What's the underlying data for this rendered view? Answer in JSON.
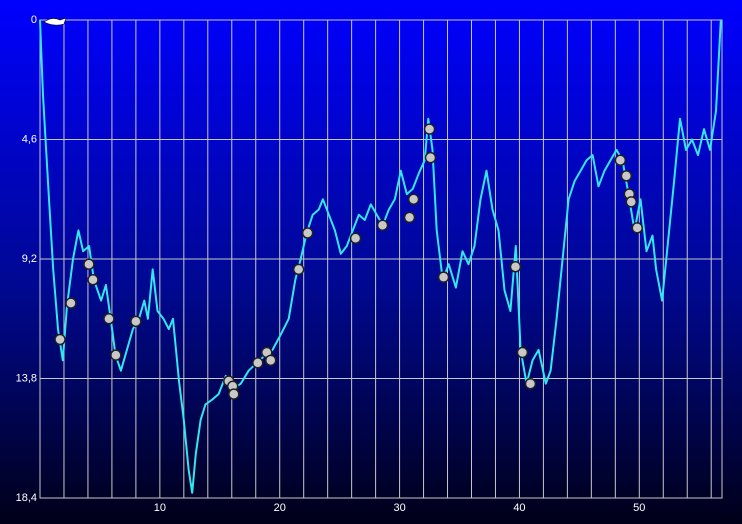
{
  "chart_data": {
    "type": "line",
    "color": "#33e6f0",
    "y_inverted": true,
    "grid": true,
    "xlim": [
      0,
      56.9
    ],
    "xticks": [
      10,
      20,
      30,
      40,
      50
    ],
    "xgrid": [
      2,
      4,
      6,
      8,
      10,
      12,
      14,
      16,
      18,
      20,
      22,
      24,
      26,
      28,
      30,
      32,
      34,
      36,
      38,
      40,
      42,
      44,
      46,
      48,
      50,
      52,
      54,
      56
    ],
    "ylim": [
      0,
      18.4
    ],
    "yticks": [
      0,
      {
        "value": 4.6,
        "label": "4,6"
      },
      {
        "value": 9.2,
        "label": "9,2"
      },
      {
        "value": 13.8,
        "label": "13,8"
      },
      {
        "value": 18.4,
        "label": "18,4"
      }
    ],
    "x": [
      0,
      0.25,
      0.75,
      1.1,
      1.5,
      1.9,
      2.25,
      2.75,
      3.2,
      3.6,
      4.1,
      4.5,
      5.1,
      5.5,
      5.9,
      6.3,
      6.75,
      7.25,
      7.75,
      8.25,
      8.7,
      9,
      9.4,
      9.8,
      10.3,
      10.75,
      11.1,
      11.6,
      12,
      12.4,
      12.7,
      13,
      13.4,
      13.8,
      14.4,
      14.9,
      15.5,
      16.1,
      16.75,
      17.4,
      18.1,
      18.8,
      19.4,
      20.1,
      20.75,
      21.3,
      21.75,
      22.25,
      22.75,
      23.25,
      23.6,
      24.1,
      24.6,
      25.1,
      25.6,
      26.1,
      26.6,
      27.1,
      27.6,
      28.1,
      28.6,
      29.1,
      29.6,
      30.1,
      30.6,
      31.1,
      31.6,
      32.1,
      32.4,
      32.75,
      33.1,
      33.6,
      34.1,
      34.7,
      35.25,
      35.75,
      36.25,
      36.75,
      37.25,
      37.75,
      38.25,
      38.75,
      39.25,
      39.7,
      40.1,
      40.6,
      41.1,
      41.6,
      42.2,
      42.6,
      43.1,
      43.6,
      44.1,
      44.6,
      45.1,
      45.6,
      46.1,
      46.6,
      47.1,
      47.6,
      48.1,
      48.6,
      49.1,
      49.6,
      50.1,
      50.6,
      51.1,
      51.4,
      51.9,
      52.4,
      52.9,
      53.4,
      53.9,
      54.4,
      54.9,
      55.4,
      55.9,
      56.4,
      56.8
    ],
    "values": [
      0,
      2.9,
      6.9,
      9.6,
      11.9,
      13.1,
      11.0,
      9.2,
      8.1,
      8.9,
      8.7,
      10.0,
      10.8,
      10.2,
      11.5,
      12.9,
      13.5,
      12.7,
      11.9,
      11.5,
      10.8,
      11.5,
      9.6,
      11.2,
      11.5,
      11.9,
      11.5,
      13.9,
      15.4,
      17.3,
      18.2,
      16.7,
      15.4,
      14.8,
      14.6,
      14.4,
      13.7,
      14.2,
      14.0,
      13.5,
      13.2,
      12.9,
      12.7,
      12.1,
      11.5,
      10.0,
      9.2,
      8.2,
      7.5,
      7.3,
      6.9,
      7.5,
      8.1,
      9.0,
      8.7,
      8.1,
      7.5,
      7.7,
      7.1,
      7.5,
      7.9,
      7.3,
      6.9,
      5.8,
      6.7,
      6.5,
      5.9,
      5.4,
      3.8,
      5.0,
      8.1,
      10.0,
      9.4,
      10.3,
      8.9,
      9.4,
      8.7,
      6.9,
      5.8,
      7.3,
      8.1,
      10.4,
      11.2,
      8.7,
      12.7,
      14.0,
      13.1,
      12.7,
      14.0,
      13.5,
      11.5,
      9.2,
      6.9,
      6.2,
      5.8,
      5.4,
      5.2,
      6.4,
      5.8,
      5.4,
      5.0,
      5.4,
      6.7,
      8.1,
      6.9,
      8.9,
      8.3,
      9.6,
      10.8,
      8.5,
      6.2,
      3.8,
      5.0,
      4.6,
      5.2,
      4.2,
      5.0,
      3.5,
      0
    ],
    "events": {
      "x": [
        1.67,
        2.58,
        4.08,
        4.42,
        5.75,
        6.33,
        8.0,
        15.75,
        16.08,
        16.17,
        18.17,
        18.92,
        19.25,
        21.58,
        22.33,
        26.33,
        28.58,
        30.83,
        31.17,
        32.5,
        32.58,
        33.67,
        39.67,
        40.25,
        40.92,
        48.42,
        48.92,
        49.17,
        49.33,
        49.83
      ],
      "y": [
        12.3,
        10.9,
        9.4,
        10.0,
        11.5,
        12.9,
        11.6,
        13.9,
        14.1,
        14.4,
        13.2,
        12.8,
        13.1,
        9.6,
        8.2,
        8.4,
        7.9,
        7.6,
        6.9,
        4.2,
        5.3,
        9.9,
        9.5,
        12.8,
        14.0,
        5.4,
        6.0,
        6.7,
        7.0,
        8.0
      ]
    }
  }
}
